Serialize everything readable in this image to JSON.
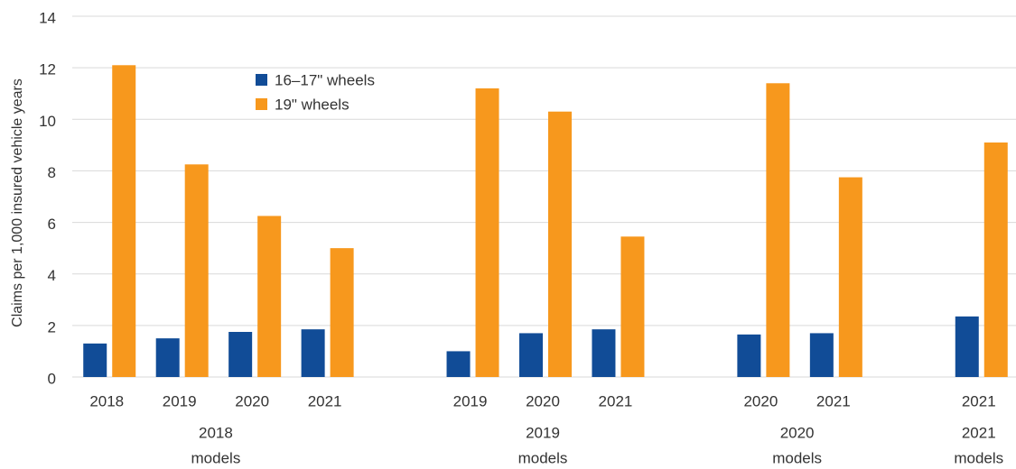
{
  "chart_data": {
    "type": "bar",
    "ylabel": "Claims per 1,000 insured vehicle years",
    "groups": [
      {
        "label": [
          "2018",
          "models"
        ],
        "categories": [
          "2018",
          "2019",
          "2020",
          "2021"
        ]
      },
      {
        "label": [
          "2019",
          "models"
        ],
        "categories": [
          "2019",
          "2020",
          "2021"
        ]
      },
      {
        "label": [
          "2020",
          "models"
        ],
        "categories": [
          "2020",
          "2021"
        ]
      },
      {
        "label": [
          "2021",
          "models"
        ],
        "categories": [
          "2021"
        ]
      }
    ],
    "series": [
      {
        "name": "16–17\" wheels",
        "color": "#114c97",
        "values": [
          1.3,
          1.5,
          1.75,
          1.85,
          1.0,
          1.7,
          1.85,
          1.65,
          1.7,
          2.35
        ]
      },
      {
        "name": "19\" wheels",
        "color": "#f7981d",
        "values": [
          12.1,
          8.25,
          6.25,
          5.0,
          11.2,
          10.3,
          5.45,
          11.4,
          7.75,
          9.1
        ]
      }
    ],
    "ylim": [
      0,
      14
    ],
    "yticks": [
      0,
      2,
      4,
      6,
      8,
      10,
      12,
      14
    ],
    "grid": true
  }
}
